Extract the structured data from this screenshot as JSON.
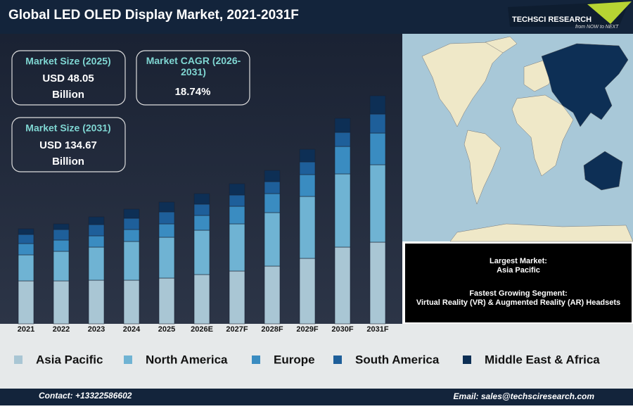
{
  "chart_data": {
    "type": "bar",
    "stacked": true,
    "title": "Global LED OLED Display Market, 2021-2031F",
    "categories": [
      "2021",
      "2022",
      "2023",
      "2024",
      "2025",
      "2026E",
      "2027F",
      "2028F",
      "2029F",
      "2030F",
      "2031F"
    ],
    "series": [
      {
        "name": "Asia Pacific",
        "color": "#a9c6d4",
        "values": [
          61,
          61,
          62,
          62,
          65,
          70,
          75,
          82,
          93,
          109,
          116
        ]
      },
      {
        "name": "North America",
        "color": "#6fb3d3",
        "values": [
          37,
          42,
          47,
          55,
          58,
          63,
          67,
          76,
          88,
          104,
          110
        ]
      },
      {
        "name": "Europe",
        "color": "#3a8cc1",
        "values": [
          16,
          16,
          16,
          17,
          19,
          21,
          25,
          27,
          31,
          39,
          45
        ]
      },
      {
        "name": "South America",
        "color": "#1e5f9a",
        "values": [
          13,
          15,
          16,
          16,
          17,
          16,
          16,
          17,
          18,
          20,
          27
        ]
      },
      {
        "name": "Middle East & Africa",
        "color": "#0d2f55",
        "values": [
          8,
          8,
          11,
          13,
          14,
          15,
          16,
          16,
          18,
          20,
          26
        ]
      }
    ]
  },
  "logo": {
    "name": "TECHSCI RESEARCH",
    "tagline": "from NOW to NEXT"
  },
  "kpis": [
    {
      "label": "Market Size (2025)",
      "value": "USD 48.05",
      "unit": "Billion"
    },
    {
      "label": "Market CAGR (2026-2031)",
      "value": "18.74%"
    },
    {
      "label": "Market Size (2031)",
      "value": "USD 134.67",
      "unit": "Billion"
    }
  ],
  "info": {
    "largest_label": "Largest Market:",
    "largest_value": "Asia Pacific",
    "fastest_label": "Fastest Growing Segment:",
    "fastest_value": "Virtual Reality (VR) & Augmented Reality (AR) Headsets"
  },
  "footer": {
    "contact": "Contact: +13322586602",
    "email": "Email: sales@techsciresearch.com"
  }
}
